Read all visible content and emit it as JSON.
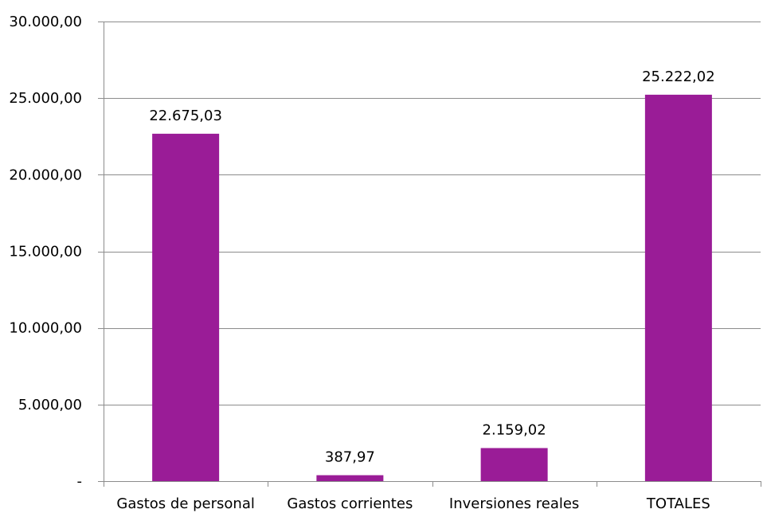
{
  "chart_data": {
    "type": "bar",
    "categories": [
      "Gastos de personal",
      "Gastos corrientes",
      "Inversiones reales",
      "TOTALES"
    ],
    "series": [
      {
        "values": [
          22675.03,
          387.97,
          2159.02,
          25222.02
        ],
        "value_labels": [
          "22.675,03",
          "387,97",
          "2.159,02",
          "25.222,02"
        ]
      }
    ],
    "ylim": [
      0,
      30000
    ],
    "y_ticks": [
      0,
      5000,
      10000,
      15000,
      20000,
      25000,
      30000
    ],
    "y_tick_labels": [
      "-",
      "5.000,00",
      "10.000,00",
      "15.000,00",
      "20.000,00",
      "25.000,00",
      "30.000,00"
    ],
    "grid": true,
    "legend": "none",
    "colors": {
      "bar": "#9A1C97",
      "grid": "#8C8C8C",
      "axis": "#8C8C8C"
    }
  }
}
